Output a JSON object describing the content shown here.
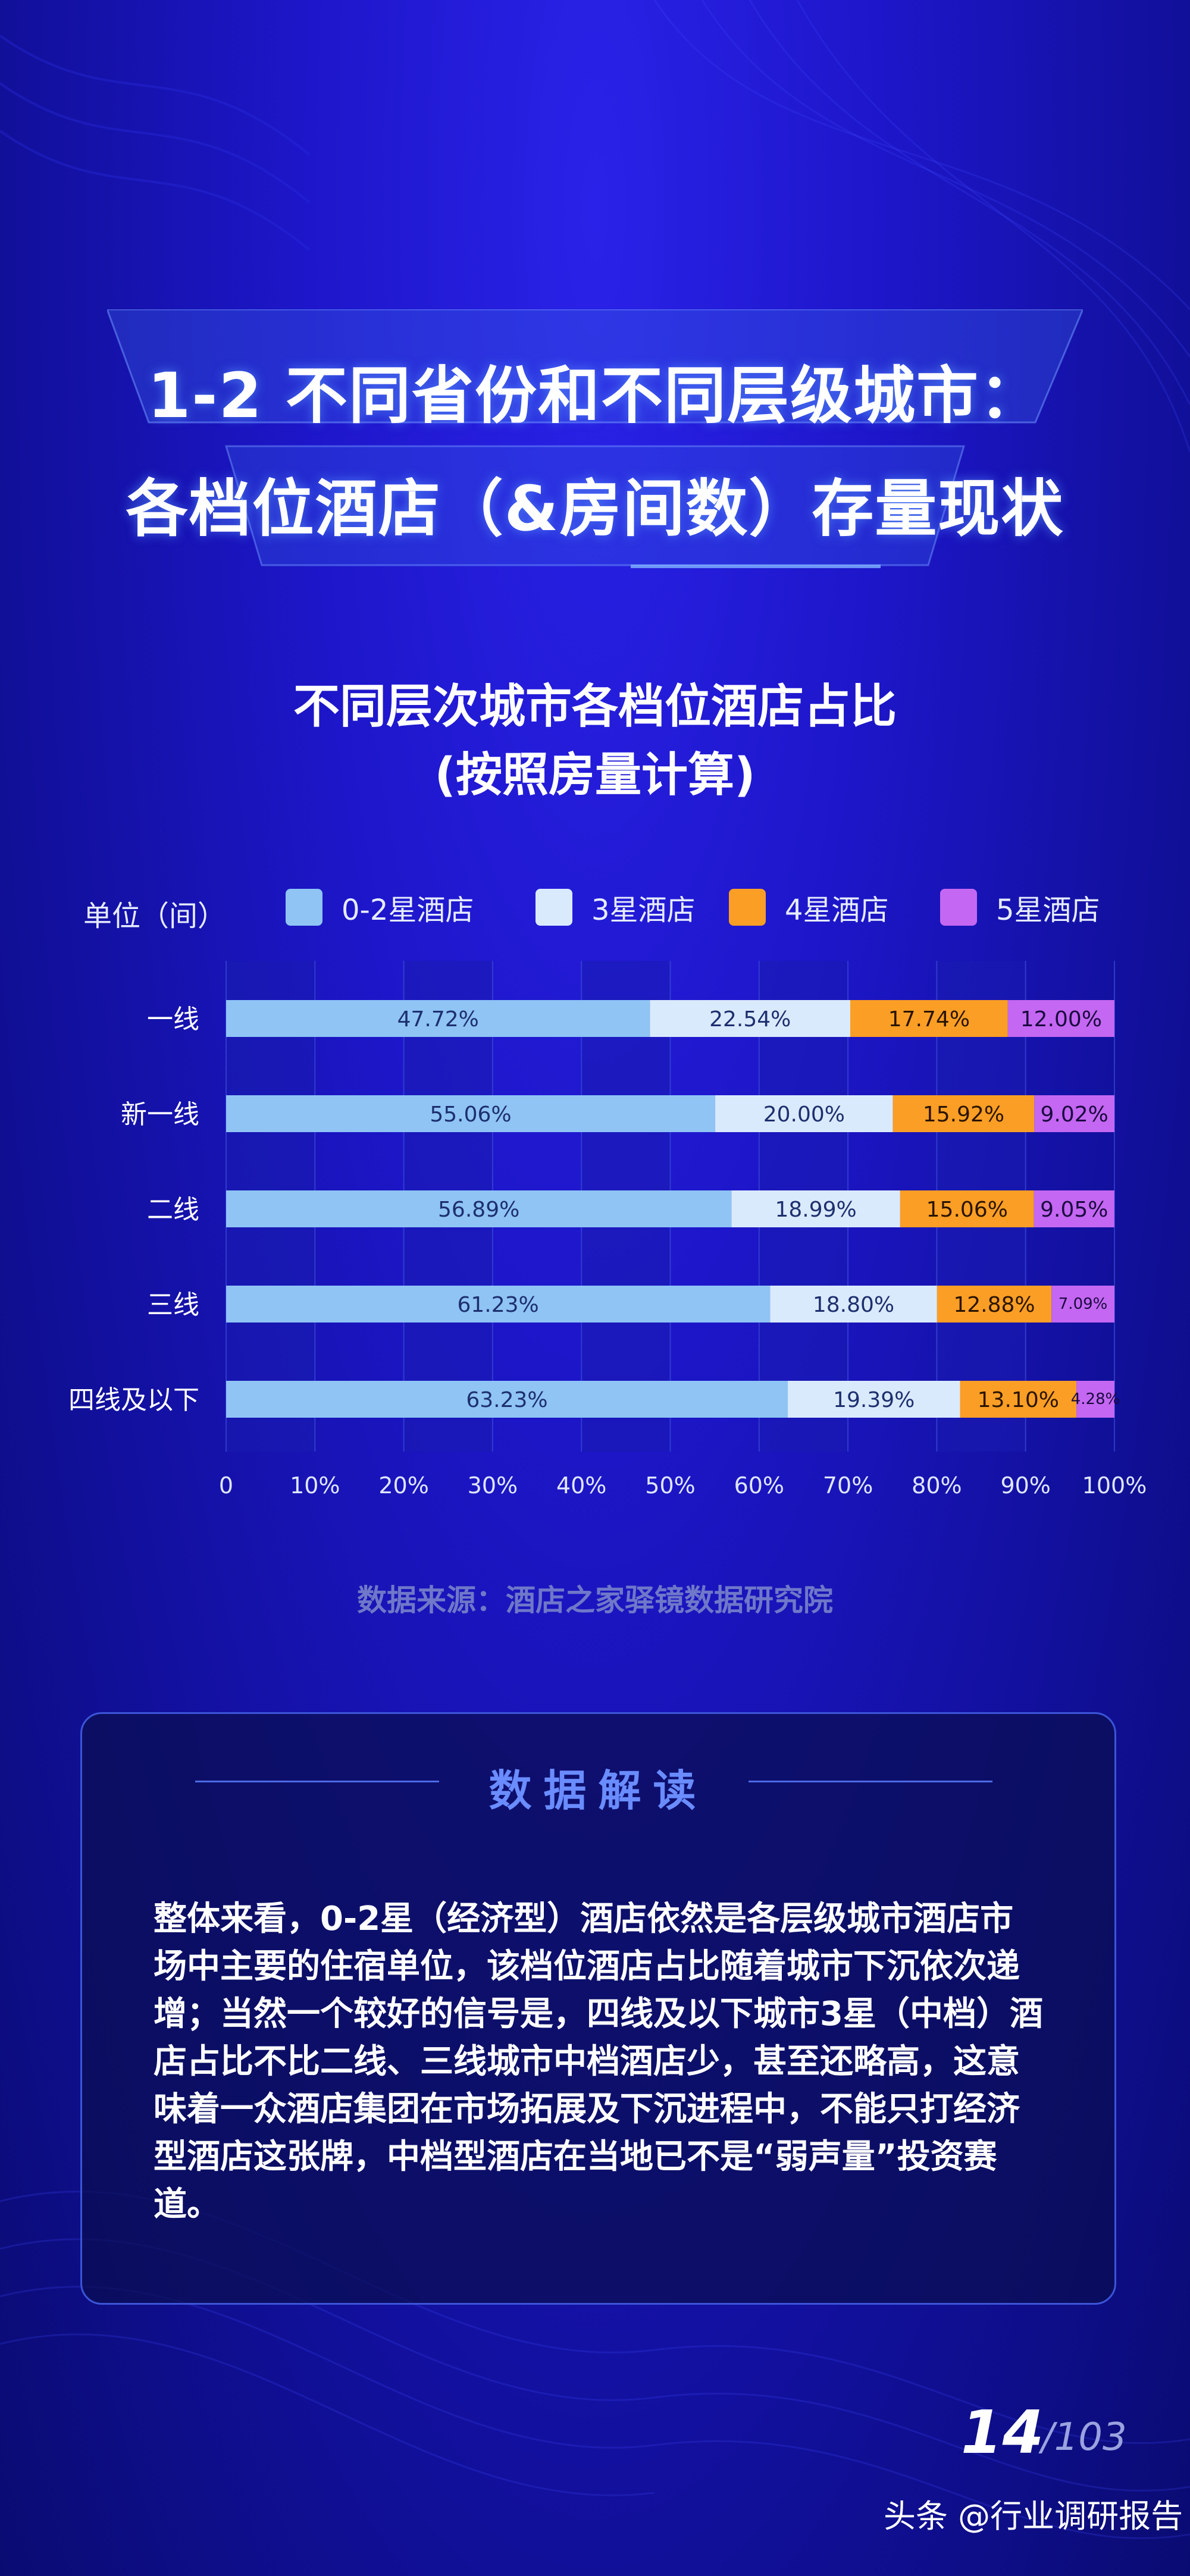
{
  "header": {
    "title_line1": "1-2 不同省份和不同层级城市：",
    "title_line2": "各档位酒店（&房间数）存量现状"
  },
  "chart_title_line1": "不同层次城市各档位酒店占比",
  "chart_title_line2": "(按照房量计算)",
  "legend": {
    "unit": "单位（间）",
    "items": [
      "0-2星酒店",
      "3星酒店",
      "4星酒店",
      "5星酒店"
    ]
  },
  "colors": {
    "s1": "#8fc4f5",
    "s2": "#daeafd",
    "s3": "#fb9e25",
    "s4": "#c467f2"
  },
  "chart_data": {
    "type": "bar",
    "orientation": "horizontal-stacked-100",
    "title": "不同层次城市各档位酒店占比 (按照房量计算)",
    "categories": [
      "一线",
      "新一线",
      "二线",
      "三线",
      "四线及以下"
    ],
    "series": [
      {
        "name": "0-2星酒店",
        "values": [
          47.72,
          55.06,
          56.89,
          61.23,
          63.23
        ],
        "labels": [
          "47.72%",
          "55.06%",
          "56.89%",
          "61.23%",
          "63.23%"
        ]
      },
      {
        "name": "3星酒店",
        "values": [
          22.54,
          20.0,
          18.99,
          18.8,
          19.39
        ],
        "labels": [
          "22.54%",
          "20.00%",
          "18.99%",
          "18.80%",
          "19.39%"
        ]
      },
      {
        "name": "4星酒店",
        "values": [
          17.74,
          15.92,
          15.06,
          12.88,
          13.1
        ],
        "labels": [
          "17.74%",
          "15.92%",
          "15.06%",
          "12.88%",
          "13.10%"
        ]
      },
      {
        "name": "5星酒店",
        "values": [
          12.0,
          9.02,
          9.05,
          7.09,
          4.28
        ],
        "labels": [
          "12.00%",
          "9.02%",
          "9.05%",
          "7.09%",
          "4.28%"
        ]
      }
    ],
    "xlim": [
      0,
      100
    ],
    "xticks": [
      "0",
      "10%",
      "20%",
      "30%",
      "40%",
      "50%",
      "60%",
      "70%",
      "80%",
      "90%",
      "100%"
    ],
    "grid": true
  },
  "source": "数据来源：酒店之家驿镜数据研究院",
  "panel": {
    "title": "数据解读",
    "body": "整体来看，0-2星（经济型）酒店依然是各层级城市酒店市场中主要的住宿单位，该档位酒店占比随着城市下沉依次递增；当然一个较好的信号是，四线及以下城市3星（中档）酒店占比不比二线、三线城市中档酒店少，甚至还略高，这意味着一众酒店集团在市场拓展及下沉进程中，不能只打经济型酒店这张牌，中档型酒店在当地已不是“弱声量”投资赛道。"
  },
  "footer": {
    "page": "14",
    "total": "/103",
    "watermark": "头条 @行业调研报告"
  }
}
